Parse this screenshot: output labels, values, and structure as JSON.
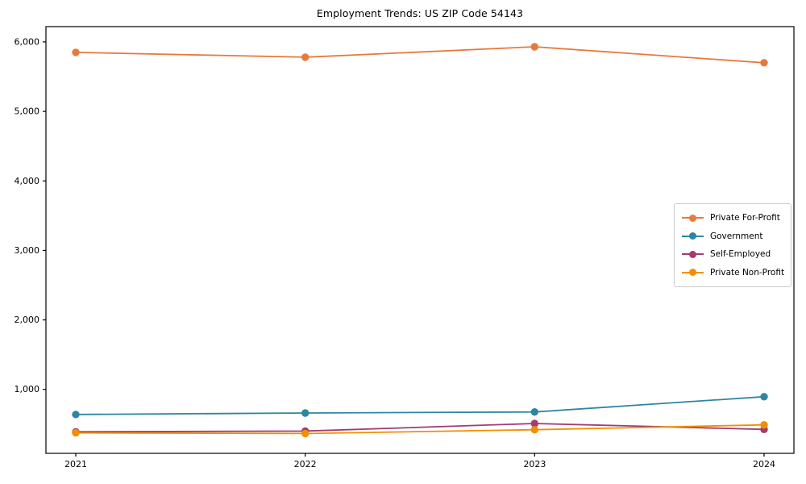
{
  "chart_data": {
    "type": "line",
    "title": "Employment Trends: US ZIP Code 54143",
    "x": [
      2021,
      2022,
      2023,
      2024
    ],
    "x_tick_labels": [
      "2021",
      "2022",
      "2023",
      "2024"
    ],
    "y_ticks": [
      1000,
      2000,
      3000,
      4000,
      5000,
      6000
    ],
    "y_tick_labels": [
      "1,000",
      "2,000",
      "3,000",
      "4,000",
      "5,000",
      "6,000"
    ],
    "xlim": [
      2020.87,
      2024.13
    ],
    "ylim": [
      80,
      6220
    ],
    "grid": false,
    "legend_position": "center-right",
    "axis_color": "#000000",
    "series": [
      {
        "name": "Private For-Profit",
        "color": "#e8793d",
        "values": [
          5850,
          5780,
          5930,
          5700
        ]
      },
      {
        "name": "Government",
        "color": "#2e86a0",
        "values": [
          640,
          660,
          675,
          895
        ]
      },
      {
        "name": "Self-Employed",
        "color": "#a23b72",
        "values": [
          390,
          400,
          510,
          425
        ]
      },
      {
        "name": "Private Non-Profit",
        "color": "#f18f01",
        "values": [
          375,
          365,
          420,
          490
        ]
      }
    ]
  }
}
